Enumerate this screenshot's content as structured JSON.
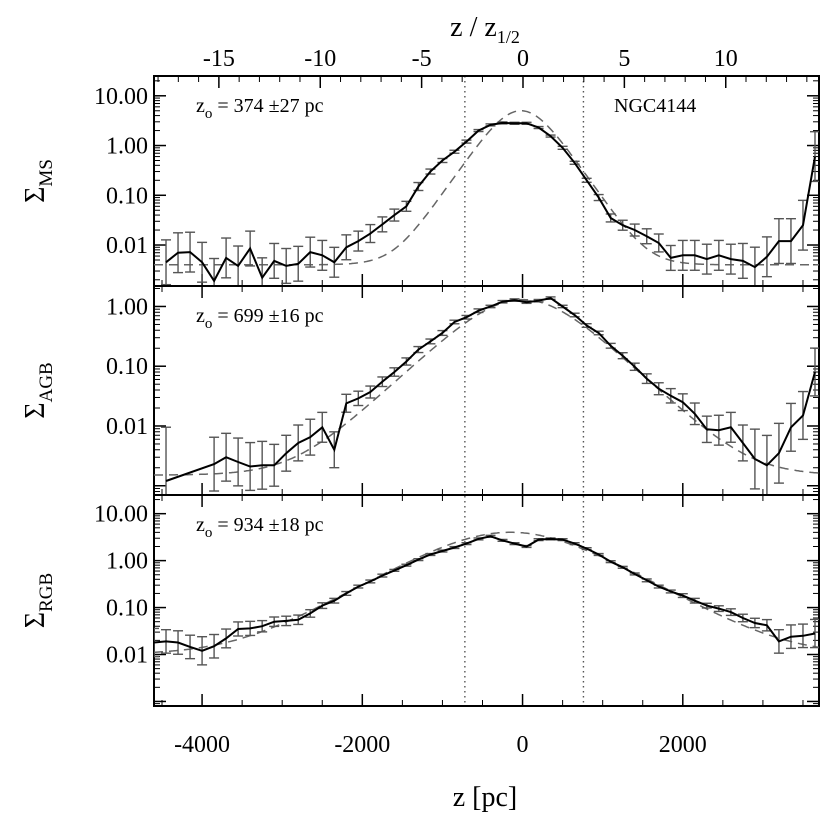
{
  "chart_data": {
    "type": "line",
    "galaxy_label": "NGC4144",
    "x_axis": {
      "label": "z [pc]",
      "range": [
        -4600,
        3700
      ],
      "ticks": [
        -4000,
        -2000,
        0,
        2000
      ],
      "tick_labels": [
        "-4000",
        "-2000",
        "0",
        "2000"
      ],
      "minor_step": 500
    },
    "top_axis": {
      "label_main": "z / z",
      "label_sub": "1/2",
      "range": [
        -18.2,
        14.6
      ],
      "ticks": [
        -15,
        -10,
        -5,
        0,
        5,
        10
      ],
      "tick_labels": [
        "-15",
        "-10",
        "-5",
        "0",
        "5",
        "10"
      ]
    },
    "vertical_lines_x": [
      -720,
      760
    ],
    "panels": [
      {
        "id": "ms",
        "ylabel_main": "Σ",
        "ylabel_sub": "MS",
        "y_scale": "log",
        "ylim": [
          0.0015,
          25
        ],
        "yticks": [
          0.01,
          0.1,
          1,
          10
        ],
        "ytick_labels": [
          "0.01",
          "0.10",
          "1.00",
          "10.00"
        ],
        "annotation_main": "z",
        "annotation_sub": "o",
        "annotation_rest": " = 374 ±27 pc",
        "data": {
          "x": [
            -4450,
            -4300,
            -4150,
            -4000,
            -3850,
            -3700,
            -3550,
            -3400,
            -3250,
            -3100,
            -2950,
            -2800,
            -2650,
            -2500,
            -2350,
            -2200,
            -2050,
            -1900,
            -1750,
            -1600,
            -1450,
            -1300,
            -1150,
            -1000,
            -850,
            -700,
            -550,
            -400,
            -250,
            -100,
            50,
            200,
            350,
            500,
            650,
            800,
            950,
            1100,
            1250,
            1400,
            1550,
            1700,
            1850,
            2000,
            2150,
            2300,
            2450,
            2600,
            2750,
            2900,
            3050,
            3200,
            3350,
            3500,
            3650
          ],
          "y": [
            0.0045,
            0.007,
            0.0072,
            0.0045,
            0.0019,
            0.0055,
            0.0038,
            0.0085,
            0.0022,
            0.0048,
            0.0038,
            0.0042,
            0.0072,
            0.0062,
            0.0045,
            0.009,
            0.012,
            0.017,
            0.026,
            0.04,
            0.06,
            0.15,
            0.3,
            0.5,
            0.75,
            1.2,
            2.0,
            2.6,
            2.85,
            2.8,
            2.8,
            2.3,
            1.55,
            0.9,
            0.45,
            0.2,
            0.09,
            0.035,
            0.025,
            0.02,
            0.015,
            0.011,
            0.0055,
            0.0062,
            0.0062,
            0.0052,
            0.0062,
            0.0052,
            0.0048,
            0.0036,
            0.0058,
            0.012,
            0.012,
            0.025,
            0.6
          ],
          "err": [
            0.45,
            0.4,
            0.4,
            0.4,
            0.45,
            0.4,
            0.4,
            0.35,
            0.4,
            0.35,
            0.35,
            0.35,
            0.3,
            0.3,
            0.3,
            0.25,
            0.2,
            0.18,
            0.15,
            0.12,
            0.1,
            0.08,
            0.05,
            0.04,
            0.03,
            0.03,
            0.02,
            0.02,
            0.02,
            0.02,
            0.02,
            0.02,
            0.02,
            0.03,
            0.03,
            0.04,
            0.06,
            0.08,
            0.1,
            0.12,
            0.15,
            0.18,
            0.25,
            0.3,
            0.3,
            0.3,
            0.3,
            0.3,
            0.35,
            0.4,
            0.4,
            0.45,
            0.45,
            0.5,
            0.5
          ]
        },
        "model": {
          "floor": 0.004,
          "amp": 5.0,
          "z0": 374,
          "center": -20
        }
      },
      {
        "id": "agb",
        "ylabel_main": "Σ",
        "ylabel_sub": "AGB",
        "y_scale": "log",
        "ylim": [
          0.0007,
          2.2
        ],
        "yticks": [
          0.01,
          0.1,
          1
        ],
        "ytick_labels": [
          "0.01",
          "0.10",
          "1.00"
        ],
        "annotation_main": "z",
        "annotation_sub": "o",
        "annotation_rest": " = 699 ±16 pc",
        "data": {
          "x": [
            -4450,
            -3850,
            -3700,
            -3550,
            -3400,
            -3250,
            -3100,
            -2950,
            -2800,
            -2650,
            -2500,
            -2350,
            -2200,
            -2050,
            -1900,
            -1750,
            -1600,
            -1450,
            -1300,
            -1150,
            -1000,
            -850,
            -700,
            -550,
            -400,
            -250,
            -100,
            50,
            200,
            350,
            500,
            650,
            800,
            950,
            1100,
            1250,
            1400,
            1550,
            1700,
            1850,
            2000,
            2150,
            2300,
            2450,
            2600,
            2750,
            2900,
            3050,
            3200,
            3350,
            3500,
            3650
          ],
          "y": [
            0.0012,
            0.0023,
            0.003,
            0.0025,
            0.0021,
            0.0022,
            0.0022,
            0.0035,
            0.0052,
            0.0065,
            0.0095,
            0.004,
            0.024,
            0.029,
            0.037,
            0.055,
            0.08,
            0.12,
            0.19,
            0.26,
            0.36,
            0.55,
            0.66,
            0.85,
            1.0,
            1.2,
            1.28,
            1.18,
            1.25,
            1.38,
            1.0,
            0.72,
            0.48,
            0.36,
            0.22,
            0.15,
            0.098,
            0.062,
            0.042,
            0.032,
            0.025,
            0.016,
            0.0088,
            0.0085,
            0.0095,
            0.0052,
            0.0028,
            0.0022,
            0.0035,
            0.0095,
            0.015,
            0.08
          ],
          "err": [
            0.9,
            0.45,
            0.4,
            0.4,
            0.4,
            0.4,
            0.35,
            0.3,
            0.3,
            0.3,
            0.25,
            0.3,
            0.15,
            0.12,
            0.1,
            0.08,
            0.07,
            0.06,
            0.05,
            0.04,
            0.04,
            0.03,
            0.03,
            0.03,
            0.02,
            0.02,
            0.02,
            0.02,
            0.02,
            0.02,
            0.02,
            0.03,
            0.03,
            0.03,
            0.04,
            0.05,
            0.06,
            0.08,
            0.1,
            0.12,
            0.14,
            0.18,
            0.22,
            0.25,
            0.25,
            0.3,
            0.5,
            0.5,
            0.5,
            0.4,
            0.4,
            0.4
          ]
        },
        "model": {
          "floor": 0.0015,
          "amp": 1.3,
          "z0": 699,
          "center": 0
        }
      },
      {
        "id": "rgb",
        "ylabel_main": "Σ",
        "ylabel_sub": "RGB",
        "y_scale": "log",
        "ylim": [
          0.0008,
          25
        ],
        "yticks": [
          0.01,
          0.1,
          1,
          10
        ],
        "ytick_labels": [
          "0.01",
          "0.10",
          "1.00",
          "10.00"
        ],
        "annotation_main": "z",
        "annotation_sub": "o",
        "annotation_rest": " = 934 ±18 pc",
        "data": {
          "x": [
            -4600,
            -4450,
            -4300,
            -4150,
            -4000,
            -3850,
            -3700,
            -3550,
            -3400,
            -3250,
            -3100,
            -2950,
            -2800,
            -2650,
            -2500,
            -2350,
            -2200,
            -2050,
            -1900,
            -1750,
            -1600,
            -1450,
            -1300,
            -1150,
            -1000,
            -850,
            -700,
            -550,
            -400,
            -250,
            -100,
            50,
            200,
            350,
            500,
            650,
            800,
            950,
            1100,
            1250,
            1400,
            1550,
            1700,
            1850,
            2000,
            2150,
            2300,
            2450,
            2600,
            2750,
            2900,
            3050,
            3200,
            3350,
            3500,
            3650
          ],
          "y": [
            0.018,
            0.019,
            0.018,
            0.0145,
            0.012,
            0.015,
            0.022,
            0.035,
            0.036,
            0.04,
            0.05,
            0.052,
            0.055,
            0.075,
            0.11,
            0.14,
            0.2,
            0.28,
            0.36,
            0.48,
            0.62,
            0.8,
            1.05,
            1.35,
            1.6,
            1.9,
            2.3,
            2.9,
            3.3,
            2.7,
            2.3,
            2.0,
            2.8,
            2.9,
            2.8,
            2.3,
            1.8,
            1.35,
            0.95,
            0.72,
            0.52,
            0.38,
            0.28,
            0.22,
            0.18,
            0.14,
            0.11,
            0.095,
            0.08,
            0.06,
            0.047,
            0.042,
            0.019,
            0.024,
            0.025,
            0.028
          ],
          "err": [
            0.3,
            0.25,
            0.25,
            0.25,
            0.3,
            0.25,
            0.2,
            0.15,
            0.15,
            0.12,
            0.1,
            0.1,
            0.1,
            0.08,
            0.06,
            0.05,
            0.04,
            0.03,
            0.03,
            0.03,
            0.02,
            0.02,
            0.02,
            0.02,
            0.02,
            0.02,
            0.02,
            0.02,
            0.02,
            0.02,
            0.02,
            0.02,
            0.02,
            0.02,
            0.02,
            0.02,
            0.02,
            0.02,
            0.02,
            0.02,
            0.02,
            0.03,
            0.03,
            0.03,
            0.04,
            0.05,
            0.05,
            0.06,
            0.07,
            0.08,
            0.1,
            0.12,
            0.25,
            0.25,
            0.25,
            0.3
          ]
        },
        "model": {
          "floor": 0.01,
          "amp": 4.0,
          "z0": 934,
          "center": -150
        }
      }
    ]
  }
}
